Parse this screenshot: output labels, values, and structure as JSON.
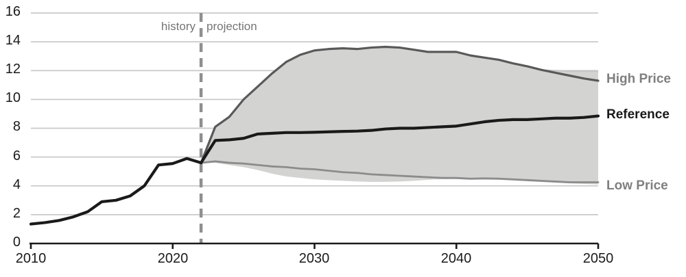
{
  "chart_data": {
    "type": "line",
    "title": "",
    "xlabel": "",
    "ylabel": "",
    "x_range": [
      2010,
      2050
    ],
    "y_range": [
      0,
      16
    ],
    "grid": true,
    "legend_position": "right-outside",
    "xticks": [
      "2010",
      "2020",
      "2030",
      "2040",
      "2050"
    ],
    "yticks": [
      "0",
      "2",
      "4",
      "6",
      "8",
      "10",
      "12",
      "14",
      "16"
    ],
    "divider": {
      "year": 2022,
      "label_left": "history",
      "label_right": "projection"
    },
    "labels": {
      "high": "High Price",
      "reference": "Reference",
      "low": "Low Price"
    },
    "colors": {
      "reference_line": "#1a1a1a",
      "high_line": "#595959",
      "low_line": "#8c8c8c",
      "band_fill": "#d3d3d1",
      "band_edge": "#c6c6c4",
      "grid": "#c9c9c9",
      "axis": "#1a1a1a",
      "divider": "#8f8f8f",
      "annotation": "#757575",
      "label_gray": "#7f7f7f",
      "label_black": "#1a1a1a"
    },
    "series": [
      {
        "name": "Reference (history)",
        "role": "history",
        "years": [
          2010,
          2011,
          2012,
          2013,
          2014,
          2015,
          2016,
          2017,
          2018,
          2019,
          2020,
          2021,
          2022
        ],
        "values": [
          1.35,
          1.45,
          1.6,
          1.85,
          2.2,
          2.9,
          3.0,
          3.3,
          4.0,
          5.45,
          5.55,
          5.9,
          5.6
        ]
      },
      {
        "name": "Reference",
        "role": "reference",
        "years": [
          2022,
          2023,
          2024,
          2025,
          2026,
          2027,
          2028,
          2029,
          2030,
          2031,
          2032,
          2033,
          2034,
          2035,
          2036,
          2037,
          2038,
          2039,
          2040,
          2041,
          2042,
          2043,
          2044,
          2045,
          2046,
          2047,
          2048,
          2049,
          2050
        ],
        "values": [
          5.6,
          7.15,
          7.2,
          7.3,
          7.6,
          7.65,
          7.7,
          7.7,
          7.72,
          7.75,
          7.78,
          7.8,
          7.85,
          7.95,
          8.0,
          8.0,
          8.05,
          8.1,
          8.15,
          8.3,
          8.45,
          8.55,
          8.6,
          8.6,
          8.65,
          8.7,
          8.7,
          8.75,
          8.85
        ]
      },
      {
        "name": "High Price",
        "role": "high",
        "years": [
          2022,
          2023,
          2024,
          2025,
          2026,
          2027,
          2028,
          2029,
          2030,
          2031,
          2032,
          2033,
          2034,
          2035,
          2036,
          2037,
          2038,
          2039,
          2040,
          2041,
          2042,
          2043,
          2044,
          2045,
          2046,
          2047,
          2048,
          2049,
          2050
        ],
        "values": [
          5.6,
          8.1,
          8.8,
          10.0,
          10.9,
          11.8,
          12.6,
          13.1,
          13.4,
          13.5,
          13.55,
          13.5,
          13.6,
          13.65,
          13.6,
          13.45,
          13.3,
          13.3,
          13.3,
          13.05,
          12.9,
          12.75,
          12.5,
          12.3,
          12.05,
          11.85,
          11.65,
          11.45,
          11.3
        ]
      },
      {
        "name": "Low Price",
        "role": "low",
        "years": [
          2022,
          2023,
          2024,
          2025,
          2026,
          2027,
          2028,
          2029,
          2030,
          2031,
          2032,
          2033,
          2034,
          2035,
          2036,
          2037,
          2038,
          2039,
          2040,
          2041,
          2042,
          2043,
          2044,
          2045,
          2046,
          2047,
          2048,
          2049,
          2050
        ],
        "values": [
          5.6,
          5.7,
          5.6,
          5.55,
          5.45,
          5.35,
          5.3,
          5.2,
          5.15,
          5.05,
          4.95,
          4.9,
          4.8,
          4.75,
          4.7,
          4.65,
          4.6,
          4.55,
          4.55,
          4.5,
          4.52,
          4.5,
          4.45,
          4.4,
          4.35,
          4.3,
          4.25,
          4.25,
          4.25
        ]
      }
    ],
    "band": {
      "name": "scenario range",
      "years": [
        2022,
        2023,
        2024,
        2025,
        2026,
        2027,
        2028,
        2029,
        2030,
        2031,
        2032,
        2033,
        2034,
        2035,
        2036,
        2037,
        2038,
        2039,
        2040,
        2041,
        2042,
        2043,
        2044,
        2045,
        2046,
        2047,
        2048,
        2049,
        2050
      ],
      "top": [
        5.6,
        8.1,
        8.8,
        10.0,
        10.9,
        11.8,
        12.6,
        13.1,
        13.4,
        13.5,
        13.55,
        13.5,
        13.6,
        13.65,
        13.6,
        13.45,
        13.3,
        13.3,
        13.3,
        13.05,
        12.9,
        12.75,
        12.5,
        12.3,
        12.05,
        12.0,
        11.95,
        11.95,
        11.95
      ],
      "bottom": [
        5.6,
        5.6,
        5.45,
        5.3,
        5.1,
        4.85,
        4.65,
        4.55,
        4.45,
        4.4,
        4.35,
        4.3,
        4.28,
        4.28,
        4.3,
        4.35,
        4.42,
        4.47,
        4.47,
        4.42,
        4.44,
        4.42,
        4.37,
        4.32,
        4.27,
        4.22,
        4.17,
        4.13,
        4.1
      ]
    }
  }
}
